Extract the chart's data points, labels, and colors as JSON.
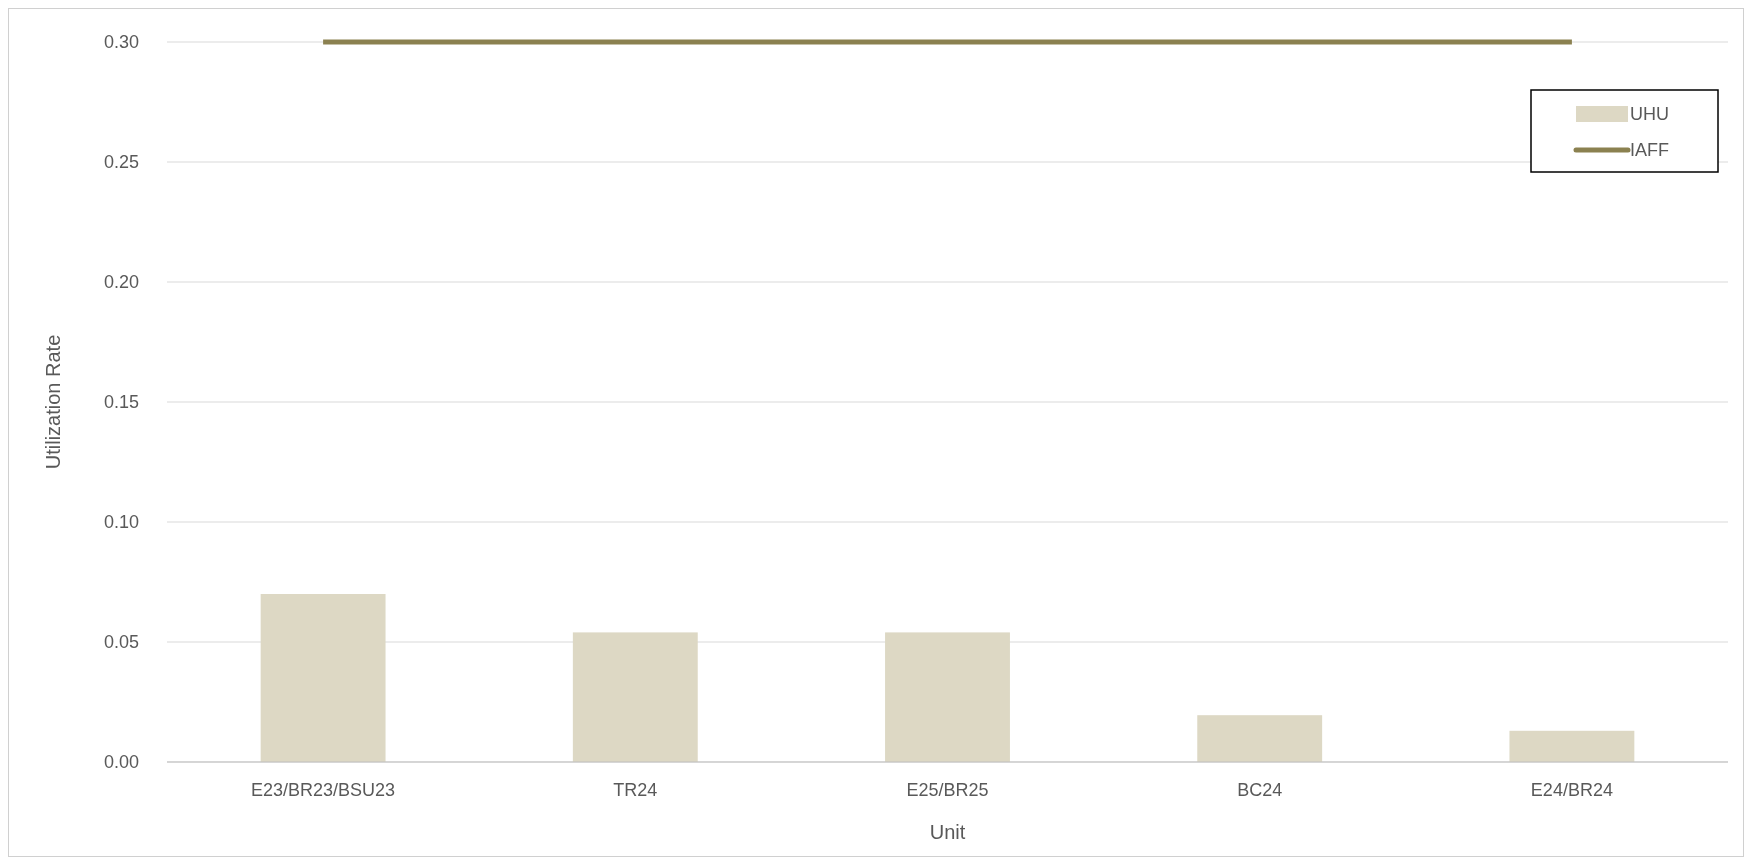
{
  "chart_data": {
    "type": "bar",
    "xlabel": "Unit",
    "ylabel": "Utilization Rate",
    "categories": [
      "E23/BR23/BSU23",
      "TR24",
      "E25/BR25",
      "BC24",
      "E24/BR24"
    ],
    "series": [
      {
        "name": "UHU",
        "color": "#ddd8c4",
        "values": [
          0.07,
          0.054,
          0.054,
          0.0195,
          0.013
        ]
      },
      {
        "name": "IAFF",
        "type": "line",
        "color": "#8b8150",
        "values": [
          0.3,
          0.3,
          0.3,
          0.3,
          0.3
        ]
      }
    ],
    "ylim": [
      0,
      0.3
    ],
    "yticks": [
      {
        "value": 0,
        "label": "0.00"
      },
      {
        "value": 0.05,
        "label": "0.05"
      },
      {
        "value": 0.1,
        "label": "0.10"
      },
      {
        "value": 0.15,
        "label": "0.15"
      },
      {
        "value": 0.2,
        "label": "0.20"
      },
      {
        "value": 0.25,
        "label": "0.25"
      },
      {
        "value": 0.3,
        "label": "0.30"
      }
    ],
    "grid": "y",
    "legend": "top right",
    "marker": "none",
    "line_style": "solid"
  }
}
